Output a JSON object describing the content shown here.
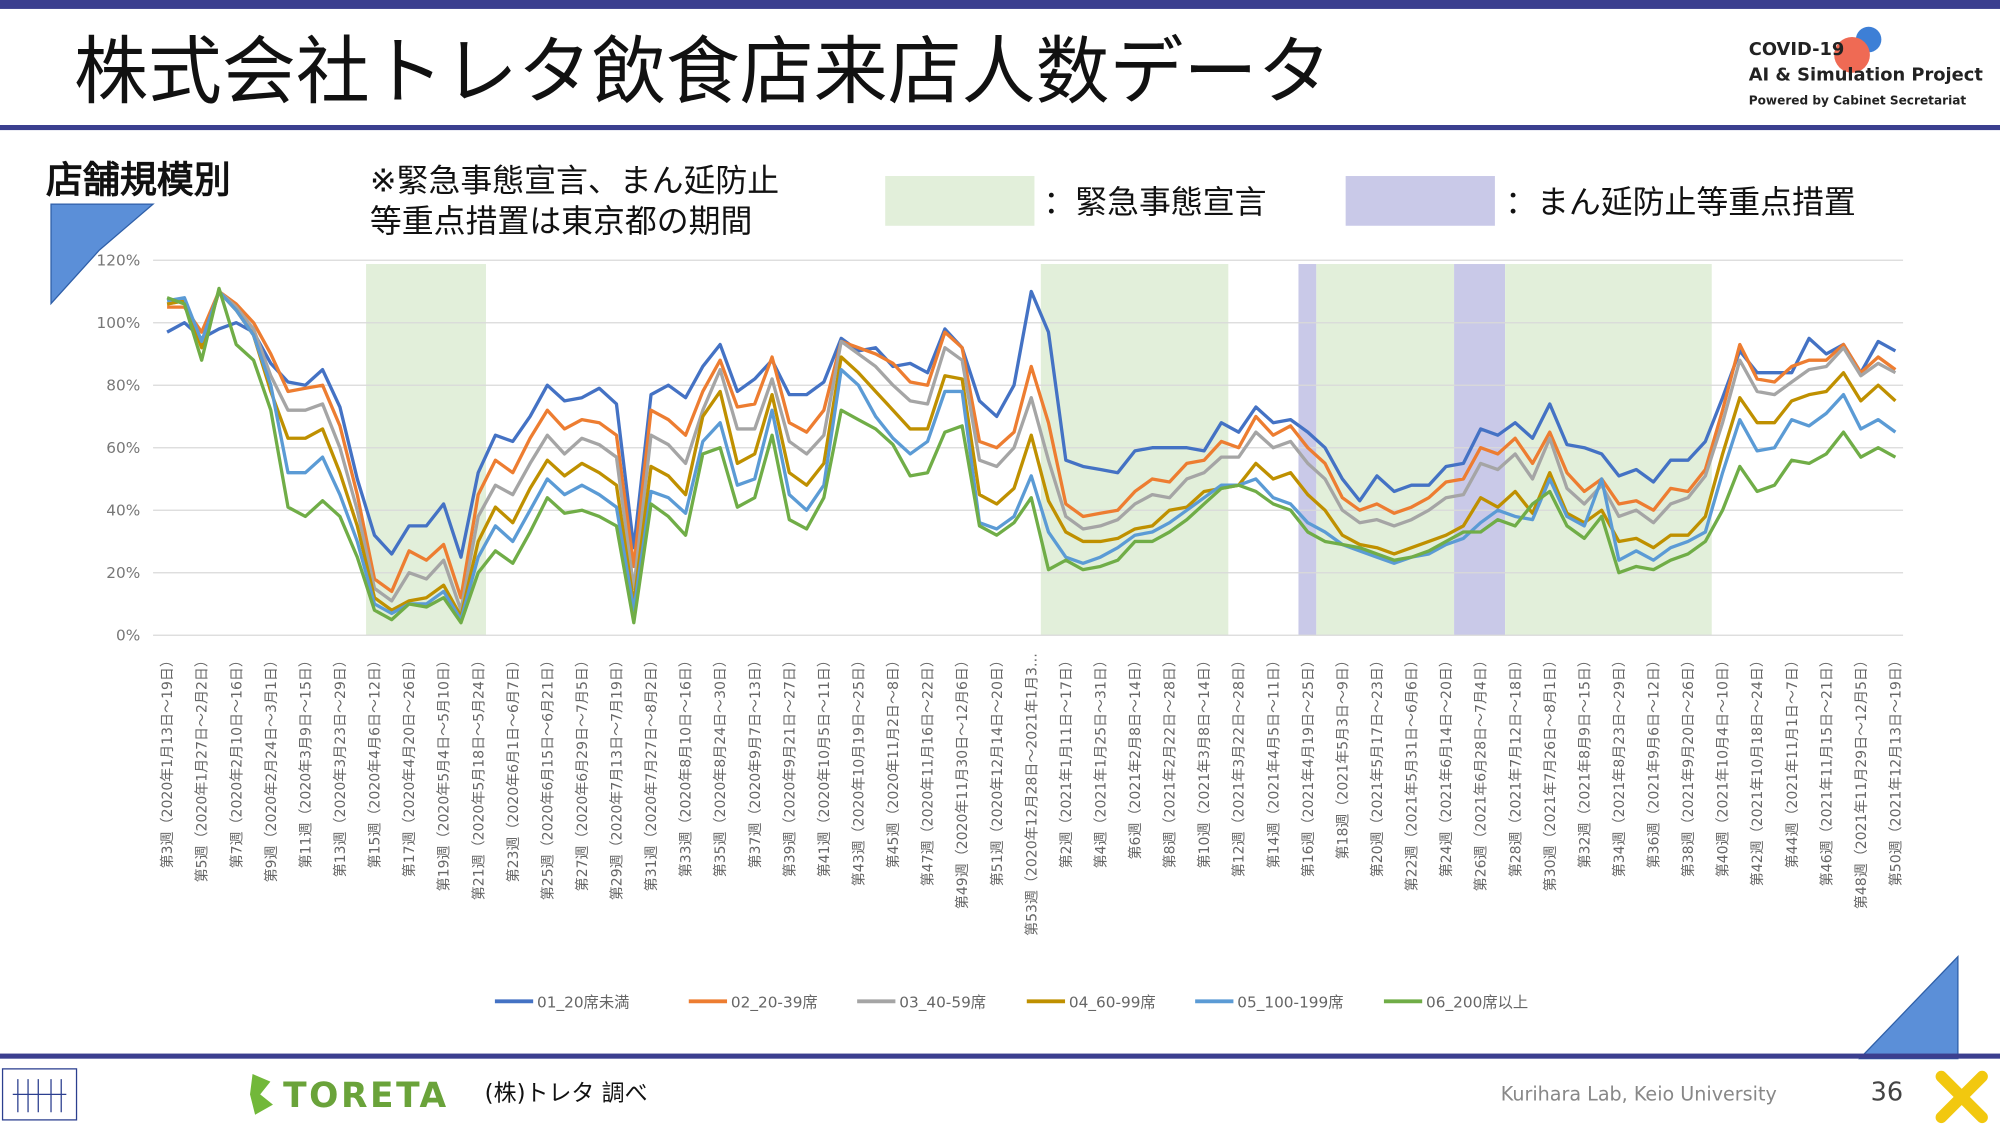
{
  "slide": {
    "title": "株式会社トレタ飲食店来店人数データ",
    "section": "店舗規模別",
    "note": [
      "※緊急事態宣言、まん延防止",
      "等重点措置は東京都の期間"
    ],
    "band_legend": [
      {
        "label": "：緊急事態宣言",
        "color": "#e2efda"
      },
      {
        "label": "：まん延防止等重点措置",
        "color": "#c9c9e8"
      }
    ],
    "logo": [
      "COVID-19",
      "AI & Simulation Project",
      "Powered by Cabinet Secretariat"
    ],
    "brand": "TORETA",
    "source": "(株)トレタ 調べ",
    "lab": "Kurihara Lab, Keio University",
    "page": "36"
  },
  "chart_data": {
    "type": "line",
    "ylim": [
      0,
      120
    ],
    "yticks": [
      {
        "value": 0,
        "label": "0%"
      },
      {
        "value": 20,
        "label": "20%"
      },
      {
        "value": 40,
        "label": "40%"
      },
      {
        "value": 60,
        "label": "60%"
      },
      {
        "value": 80,
        "label": "80%"
      },
      {
        "value": 100,
        "label": "100%"
      },
      {
        "value": 120,
        "label": "120%"
      }
    ],
    "grid": true,
    "categories": [
      "第3週（2020年1月13日～19日）",
      null,
      "第5週（2020年1月27日～2月2日）",
      null,
      "第7週（2020年2月10日～16日）",
      null,
      "第9週（2020年2月24日～3月1日）",
      null,
      "第11週（2020年3月9日～15日）",
      null,
      "第13週（2020年3月23日～29日）",
      null,
      "第15週（2020年4月6日～12日）",
      null,
      "第17週（2020年4月20日～26日）",
      null,
      "第19週（2020年5月4日～5月10日）",
      null,
      "第21週（2020年5月18日～5月24日）",
      null,
      "第23週（2020年6月1日～6月7日）",
      null,
      "第25週（2020年6月15日～6月21日）",
      null,
      "第27週（2020年6月29日～7月5日）",
      null,
      "第29週（2020年7月13日～7月19日）",
      null,
      "第31週（2020年7月27日～8月2日）",
      null,
      "第33週（2020年8月10日～16日）",
      null,
      "第35週（2020年8月24日～30日）",
      null,
      "第37週（2020年9月7日～13日）",
      null,
      "第39週（2020年9月21日～27日）",
      null,
      "第41週（2020年10月5日～11日）",
      null,
      "第43週（2020年10月19日～25日）",
      null,
      "第45週（2020年11月2日～8日）",
      null,
      "第47週（2020年11月16日～22日）",
      null,
      "第49週（2020年11月30日～12月6日）",
      null,
      "第51週（2020年12月14日～20日）",
      null,
      "第53週（2020年12月28日～2021年1月3…",
      null,
      "第2週（2021年1月11日～17日）",
      null,
      "第4週（2021年1月25日～31日）",
      null,
      "第6週（2021年2月8日～14日）",
      null,
      "第8週（2021年2月22日～28日）",
      null,
      "第10週（2021年3月8日～14日）",
      null,
      "第12週（2021年3月22日～28日）",
      null,
      "第14週（2021年4月5日～11日）",
      null,
      "第16週（2021年4月19日～25日）",
      null,
      "第18週（2021年5月3日～9日）",
      null,
      "第20週（2021年5月17日～23日）",
      null,
      "第22週（2021年5月31日～6月6日）",
      null,
      "第24週（2021年6月14日～20日）",
      null,
      "第26週（2021年6月28日～7月4日）",
      null,
      "第28週（2021年7月12日～18日）",
      null,
      "第30週（2021年7月26日～8月1日）",
      null,
      "第32週（2021年8月9日～15日）",
      null,
      "第34週（2021年8月23日～29日）",
      null,
      "第36週（2021年9月6日～12日）",
      null,
      "第38週（2021年9月20日～26日）",
      null,
      "第40週（2021年10月4日～10日）",
      null,
      "第42週（2021年10月18日～24日）",
      null,
      "第44週（2021年11月1日～7日）",
      null,
      "第46週（2021年11月15日～21日）",
      null,
      "第48週（2021年11月29日～12月5日）",
      null,
      "第50週（2021年12月13日～19日）"
    ],
    "series": [
      {
        "name": "01_20席未満",
        "color": "#4472c4",
        "values": [
          97,
          100,
          95,
          98,
          100,
          97,
          87,
          81,
          80,
          85,
          73,
          50,
          32,
          26,
          35,
          35,
          42,
          25,
          52,
          64,
          62,
          70,
          80,
          75,
          76,
          79,
          74,
          28,
          77,
          80,
          76,
          86,
          93,
          78,
          82,
          88,
          77,
          77,
          81,
          95,
          91,
          92,
          86,
          87,
          84,
          98,
          92,
          75,
          70,
          80,
          110,
          97,
          56,
          54,
          53,
          52,
          59,
          60,
          60,
          60,
          59,
          68,
          65,
          73,
          68,
          69,
          65,
          60,
          50,
          43,
          51,
          46,
          48,
          48,
          54,
          55,
          66,
          64,
          68,
          63,
          74,
          61,
          60,
          58,
          51,
          53,
          49,
          56,
          56,
          62,
          76,
          91,
          84,
          84,
          84,
          95,
          90,
          93,
          84,
          94,
          91
        ]
      },
      {
        "name": "02_20-39席",
        "color": "#ed7d31",
        "values": [
          105,
          105,
          97,
          110,
          106,
          100,
          90,
          78,
          79,
          80,
          67,
          45,
          18,
          14,
          27,
          24,
          29,
          12,
          45,
          56,
          52,
          63,
          72,
          66,
          69,
          68,
          64,
          22,
          72,
          69,
          64,
          78,
          88,
          73,
          74,
          89,
          68,
          65,
          72,
          94,
          92,
          90,
          87,
          81,
          80,
          97,
          92,
          62,
          60,
          65,
          86,
          68,
          42,
          38,
          39,
          40,
          46,
          50,
          49,
          55,
          56,
          62,
          60,
          70,
          64,
          67,
          60,
          55,
          44,
          40,
          42,
          39,
          41,
          44,
          49,
          50,
          60,
          58,
          63,
          55,
          65,
          52,
          46,
          50,
          42,
          43,
          40,
          47,
          46,
          53,
          72,
          93,
          82,
          81,
          86,
          88,
          88,
          93,
          84,
          89,
          85
        ]
      },
      {
        "name": "03_40-59席",
        "color": "#a5a5a5",
        "values": [
          106,
          107,
          92,
          110,
          105,
          98,
          83,
          72,
          72,
          74,
          60,
          40,
          15,
          11,
          20,
          18,
          24,
          8,
          38,
          48,
          45,
          55,
          64,
          58,
          63,
          61,
          57,
          15,
          64,
          61,
          55,
          72,
          85,
          66,
          66,
          82,
          62,
          58,
          64,
          94,
          90,
          86,
          80,
          75,
          74,
          92,
          88,
          56,
          54,
          60,
          76,
          56,
          38,
          34,
          35,
          37,
          42,
          45,
          44,
          50,
          52,
          57,
          57,
          65,
          60,
          62,
          55,
          50,
          40,
          36,
          37,
          35,
          37,
          40,
          44,
          45,
          55,
          53,
          58,
          50,
          63,
          47,
          42,
          48,
          38,
          40,
          36,
          42,
          44,
          51,
          68,
          88,
          78,
          77,
          81,
          85,
          86,
          92,
          83,
          87,
          84
        ]
      },
      {
        "name": "04_60-99席",
        "color": "#bf9000",
        "values": [
          106,
          107,
          92,
          110,
          104,
          96,
          78,
          63,
          63,
          66,
          52,
          35,
          12,
          8,
          11,
          12,
          16,
          6,
          30,
          41,
          36,
          47,
          56,
          51,
          55,
          52,
          48,
          10,
          54,
          51,
          45,
          70,
          78,
          55,
          58,
          77,
          52,
          48,
          55,
          89,
          84,
          78,
          72,
          66,
          66,
          83,
          82,
          45,
          42,
          47,
          64,
          43,
          33,
          30,
          30,
          31,
          34,
          35,
          40,
          41,
          46,
          47,
          48,
          55,
          50,
          52,
          45,
          40,
          32,
          29,
          28,
          26,
          28,
          30,
          32,
          35,
          44,
          41,
          46,
          39,
          52,
          39,
          36,
          40,
          30,
          31,
          28,
          32,
          32,
          38,
          58,
          76,
          68,
          68,
          75,
          77,
          78,
          84,
          75,
          80,
          75
        ]
      },
      {
        "name": "05_100-199席",
        "color": "#5b9bd5",
        "values": [
          107,
          108,
          94,
          110,
          104,
          96,
          80,
          52,
          52,
          57,
          45,
          30,
          10,
          7,
          10,
          10,
          14,
          5,
          25,
          35,
          30,
          40,
          50,
          45,
          48,
          45,
          41,
          8,
          46,
          44,
          39,
          62,
          68,
          48,
          50,
          72,
          45,
          40,
          48,
          85,
          80,
          70,
          63,
          58,
          62,
          78,
          78,
          36,
          34,
          38,
          51,
          33,
          25,
          23,
          25,
          28,
          32,
          33,
          36,
          40,
          44,
          48,
          48,
          50,
          44,
          42,
          36,
          33,
          29,
          27,
          25,
          23,
          25,
          26,
          29,
          31,
          36,
          40,
          38,
          37,
          50,
          38,
          35,
          50,
          24,
          27,
          24,
          28,
          30,
          33,
          52,
          69,
          59,
          60,
          69,
          67,
          71,
          77,
          66,
          69,
          65
        ]
      },
      {
        "name": "06_200席以上",
        "color": "#70ad47",
        "values": [
          108,
          106,
          88,
          111,
          93,
          88,
          72,
          41,
          38,
          43,
          38,
          25,
          8,
          5,
          10,
          9,
          12,
          4,
          20,
          27,
          23,
          33,
          44,
          39,
          40,
          38,
          35,
          4,
          42,
          38,
          32,
          58,
          60,
          41,
          44,
          64,
          37,
          34,
          44,
          72,
          69,
          66,
          61,
          51,
          52,
          65,
          67,
          35,
          32,
          36,
          44,
          21,
          24,
          21,
          22,
          24,
          30,
          30,
          33,
          37,
          42,
          47,
          48,
          46,
          42,
          40,
          33,
          30,
          29,
          28,
          26,
          24,
          25,
          27,
          30,
          33,
          33,
          37,
          35,
          42,
          46,
          35,
          31,
          38,
          20,
          22,
          21,
          24,
          26,
          30,
          40,
          54,
          46,
          48,
          56,
          55,
          58,
          65,
          57,
          60,
          57
        ]
      }
    ]
  }
}
